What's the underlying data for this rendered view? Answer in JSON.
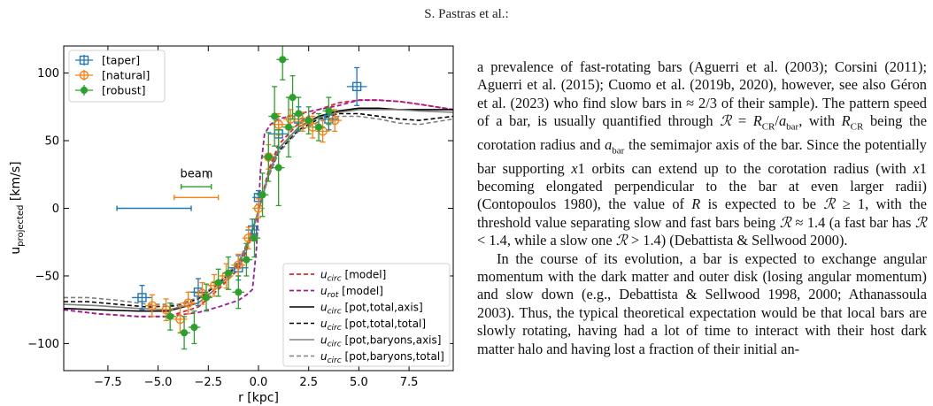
{
  "header": {
    "running_head": "S. Pastras et al.:"
  },
  "chart_data": {
    "type": "line",
    "xlabel": "r [kpc]",
    "ylabel": "u_projected [km/s]",
    "xlim": [
      -9.7,
      9.7
    ],
    "ylim": [
      -120,
      120
    ],
    "xticks": [
      -7.5,
      -5.0,
      -2.5,
      0.0,
      2.5,
      5.0,
      7.5
    ],
    "yticks": [
      -100,
      -50,
      0,
      50,
      100
    ],
    "xtick_labels": [
      "−7.5",
      "−5.0",
      "−2.5",
      "0.0",
      "2.5",
      "5.0",
      "7.5"
    ],
    "ytick_labels": [
      "−100",
      "−50",
      "0",
      "50",
      "100"
    ],
    "grid": false,
    "legend_upper": {
      "placement": "top-left",
      "entries": [
        {
          "label": "[taper]",
          "color": "#1f77b4"
        },
        {
          "label": "[natural]",
          "color": "#ff7f0e"
        },
        {
          "label": "[robust]",
          "color": "#2ca02c"
        }
      ]
    },
    "legend_lower": {
      "placement": "bottom-right",
      "entries": [
        {
          "label": "u_circ [model]",
          "color": "#e8202a",
          "dash": "5,3",
          "width": 1.8
        },
        {
          "label": "u_rot [model]",
          "color": "#a0189e",
          "dash": "5,3",
          "width": 1.8
        },
        {
          "label": "u_circ [pot,total,axis]",
          "color": "#000000",
          "dash": "",
          "width": 1.6
        },
        {
          "label": "u_circ [pot,total,total]",
          "color": "#000000",
          "dash": "5,3",
          "width": 1.6
        },
        {
          "label": "u_circ [pot,baryons,axis]",
          "color": "#7f7f7f",
          "dash": "",
          "width": 1.6
        },
        {
          "label": "u_circ [pot,baryons,total]",
          "color": "#7f7f7f",
          "dash": "5,3",
          "width": 1.6
        }
      ]
    },
    "beam": {
      "label": "beam",
      "bars": [
        {
          "series": "robust",
          "x": -3.1,
          "y": 16,
          "halfwidth": 0.75
        },
        {
          "series": "natural",
          "x": -3.1,
          "y": 8,
          "halfwidth": 1.1
        },
        {
          "series": "taper",
          "x": -5.2,
          "y": 0,
          "halfwidth": 1.85
        }
      ]
    },
    "models": [
      {
        "name": "u_circ [model]",
        "x": [
          -9.7,
          -8,
          -6,
          -4.5,
          -3,
          -2,
          -1,
          -0.5,
          0,
          0.5,
          1,
          2,
          3,
          4,
          5,
          6,
          7,
          8,
          9.7
        ],
        "y": [
          -75,
          -78,
          -80,
          -80,
          -73,
          -60,
          -45,
          -28,
          -2,
          28,
          47,
          63,
          73,
          78,
          80,
          80,
          79,
          77,
          73
        ]
      },
      {
        "name": "u_rot [model]",
        "x": [
          -9.7,
          -8,
          -6,
          -4.5,
          -3,
          -2,
          -1,
          -0.6,
          -0.3,
          -0.1,
          0,
          0.1,
          0.3,
          0.6,
          1,
          2,
          3,
          4,
          5,
          6,
          7,
          8,
          9.7
        ],
        "y": [
          -75,
          -78,
          -80,
          -80,
          -77,
          -73,
          -68,
          -64,
          -60,
          -30,
          0,
          28,
          55,
          62,
          66,
          70,
          73,
          76,
          80,
          80,
          79,
          77,
          73
        ]
      },
      {
        "name": "u_circ [pot,total,axis]",
        "x": [
          -9.7,
          -8,
          -6,
          -4.5,
          -3,
          -2,
          -1,
          -0.5,
          0,
          0.5,
          1,
          2,
          3,
          4,
          5,
          6,
          7,
          8,
          9.7
        ],
        "y": [
          -74,
          -75,
          -76,
          -76,
          -70,
          -58,
          -42,
          -25,
          -2,
          25,
          44,
          60,
          68,
          72,
          74,
          74,
          73,
          73,
          73
        ]
      },
      {
        "name": "u_circ [pot,total,total]",
        "x": [
          -9.7,
          -8.5,
          -7,
          -5.5,
          -4,
          -3,
          -2,
          -1,
          -0.5,
          0,
          0.5,
          1,
          2,
          3,
          4,
          5,
          6,
          7,
          8,
          9.7
        ],
        "y": [
          -69,
          -69,
          -71,
          -73,
          -72,
          -67,
          -56,
          -41,
          -24,
          -2,
          24,
          42,
          58,
          66,
          70,
          70,
          68,
          66,
          65,
          68
        ]
      },
      {
        "name": "u_circ [pot,baryons,axis]",
        "x": [
          -9.7,
          -8,
          -6,
          -4.5,
          -3,
          -2,
          -1,
          -0.5,
          0,
          0.5,
          1,
          2,
          3,
          4,
          5,
          6,
          7,
          8,
          9.7
        ],
        "y": [
          -71,
          -72,
          -74,
          -75,
          -70,
          -58,
          -42,
          -25,
          -2,
          25,
          44,
          60,
          67,
          71,
          73,
          73,
          73,
          72,
          71
        ]
      },
      {
        "name": "u_circ [pot,baryons,total]",
        "x": [
          -9.7,
          -8.5,
          -7,
          -5.5,
          -4,
          -3,
          -2,
          -1,
          -0.5,
          0,
          0.5,
          1,
          2,
          3,
          4,
          5,
          6,
          7,
          8,
          9.7
        ],
        "y": [
          -66,
          -66,
          -68,
          -71,
          -71,
          -66,
          -55,
          -40,
          -23,
          -2,
          23,
          41,
          57,
          64,
          68,
          68,
          66,
          63,
          62,
          66
        ]
      }
    ],
    "series": [
      {
        "name": "[taper]",
        "marker": "square",
        "color": "#1f77b4",
        "points": [
          {
            "x": -5.8,
            "y": -66,
            "xerr": 0.5,
            "yerr": 9
          },
          {
            "x": -3.0,
            "y": -62,
            "xerr": 0.5,
            "yerr": 10
          },
          {
            "x": -1.0,
            "y": -44,
            "xerr": 0.5,
            "yerr": 9
          },
          {
            "x": -0.3,
            "y": -16,
            "xerr": 0.35,
            "yerr": 8
          },
          {
            "x": 0.0,
            "y": 8,
            "xerr": 0.3,
            "yerr": 5
          },
          {
            "x": 1.0,
            "y": 55,
            "xerr": 0.5,
            "yerr": 10
          },
          {
            "x": 2.0,
            "y": 66,
            "xerr": 0.5,
            "yerr": 9
          },
          {
            "x": 3.5,
            "y": 66,
            "xerr": 0.5,
            "yerr": 8
          },
          {
            "x": 4.9,
            "y": 90,
            "xerr": 0.5,
            "yerr": 14
          }
        ]
      },
      {
        "name": "[natural]",
        "marker": "diamond",
        "color": "#ff7f0e",
        "points": [
          {
            "x": -5.3,
            "y": -72,
            "xerr": 0.35,
            "yerr": 8
          },
          {
            "x": -4.6,
            "y": -75,
            "xerr": 0.35,
            "yerr": 8
          },
          {
            "x": -3.9,
            "y": -82,
            "xerr": 0.35,
            "yerr": 10
          },
          {
            "x": -3.5,
            "y": -70,
            "xerr": 0.35,
            "yerr": 8
          },
          {
            "x": -2.8,
            "y": -63,
            "xerr": 0.35,
            "yerr": 8
          },
          {
            "x": -2.2,
            "y": -57,
            "xerr": 0.35,
            "yerr": 8
          },
          {
            "x": -1.6,
            "y": -50,
            "xerr": 0.35,
            "yerr": 9
          },
          {
            "x": -1.0,
            "y": -42,
            "xerr": 0.35,
            "yerr": 8
          },
          {
            "x": -0.5,
            "y": -22,
            "xerr": 0.3,
            "yerr": 8
          },
          {
            "x": 0.0,
            "y": 0,
            "xerr": 0.3,
            "yerr": 7
          },
          {
            "x": 0.5,
            "y": 38,
            "xerr": 0.3,
            "yerr": 9
          },
          {
            "x": 1.0,
            "y": 62,
            "xerr": 0.35,
            "yerr": 8
          },
          {
            "x": 1.6,
            "y": 66,
            "xerr": 0.35,
            "yerr": 7
          },
          {
            "x": 2.2,
            "y": 64,
            "xerr": 0.35,
            "yerr": 7
          },
          {
            "x": 2.7,
            "y": 60,
            "xerr": 0.35,
            "yerr": 8
          },
          {
            "x": 3.2,
            "y": 57,
            "xerr": 0.35,
            "yerr": 8
          },
          {
            "x": 3.8,
            "y": 65,
            "xerr": 0.35,
            "yerr": 8
          }
        ]
      },
      {
        "name": "[robust]",
        "marker": "circle",
        "color": "#2ca02c",
        "points": [
          {
            "x": -4.4,
            "y": -80,
            "xerr": 0.3,
            "yerr": 10
          },
          {
            "x": -3.7,
            "y": -92,
            "xerr": 0.3,
            "yerr": 12
          },
          {
            "x": -3.2,
            "y": -88,
            "xerr": 0.3,
            "yerr": 12
          },
          {
            "x": -2.6,
            "y": -66,
            "xerr": 0.3,
            "yerr": 10
          },
          {
            "x": -2.0,
            "y": -55,
            "xerr": 0.3,
            "yerr": 10
          },
          {
            "x": -1.5,
            "y": -48,
            "xerr": 0.3,
            "yerr": 12
          },
          {
            "x": -1.0,
            "y": -62,
            "xerr": 0.3,
            "yerr": 12
          },
          {
            "x": -0.6,
            "y": -38,
            "xerr": 0.3,
            "yerr": 12
          },
          {
            "x": -0.2,
            "y": -22,
            "xerr": 0.3,
            "yerr": 14
          },
          {
            "x": 0.2,
            "y": 10,
            "xerr": 0.3,
            "yerr": 16
          },
          {
            "x": 0.5,
            "y": 38,
            "xerr": 0.3,
            "yerr": 18
          },
          {
            "x": 0.8,
            "y": 68,
            "xerr": 0.3,
            "yerr": 22
          },
          {
            "x": 1.0,
            "y": 30,
            "xerr": 0.3,
            "yerr": 28
          },
          {
            "x": 1.2,
            "y": 110,
            "xerr": 0.3,
            "yerr": 15
          },
          {
            "x": 1.5,
            "y": 60,
            "xerr": 0.3,
            "yerr": 22
          },
          {
            "x": 1.7,
            "y": 82,
            "xerr": 0.3,
            "yerr": 16
          },
          {
            "x": 2.0,
            "y": 70,
            "xerr": 0.3,
            "yerr": 12
          },
          {
            "x": 2.5,
            "y": 65,
            "xerr": 0.3,
            "yerr": 10
          },
          {
            "x": 3.0,
            "y": 60,
            "xerr": 0.3,
            "yerr": 10
          },
          {
            "x": 3.5,
            "y": 72,
            "xerr": 0.3,
            "yerr": 10
          }
        ]
      }
    ]
  },
  "body_text": {
    "paragraph_1": "a prevalence of fast-rotating bars (Aguerri et al. (2003); Corsini (2011); Aguerri et al. (2015); Cuomo et al. (2019b, 2020), however, see also Géron et al. (2023) who find slow bars in ≈ 2/3 of their sample). The pattern speed of a bar, is usually quantified through ℛ = R_CR/a_bar, with R_CR being the corotation radius and a_bar the semimajor axis of the bar. Since the potentially bar supporting x1 orbits can extend up to the corotation radius (with x1 becoming elongated perpendicular to the bar at even larger radii) (Contopoulos 1980), the value of R is expected to be ℛ ≥ 1, with the threshold value separating slow and fast bars being ℛ ≈ 1.4 (a fast bar has ℛ < 1.4, while a slow one ℛ > 1.4) (Debattista & Sellwood 2000).",
    "paragraph_2": "In the course of its evolution, a bar is expected to exchange angular momentum with the dark matter and outer disk (losing angular momentum) and slow down (e.g., Debattista & Sellwood 1998, 2000; Athanassoula 2003). Thus, the typical theoretical expectation would be that local bars are slowly rotating, having had a lot of time to interact with their host dark matter halo and having lost a fraction of their initial an-"
  }
}
